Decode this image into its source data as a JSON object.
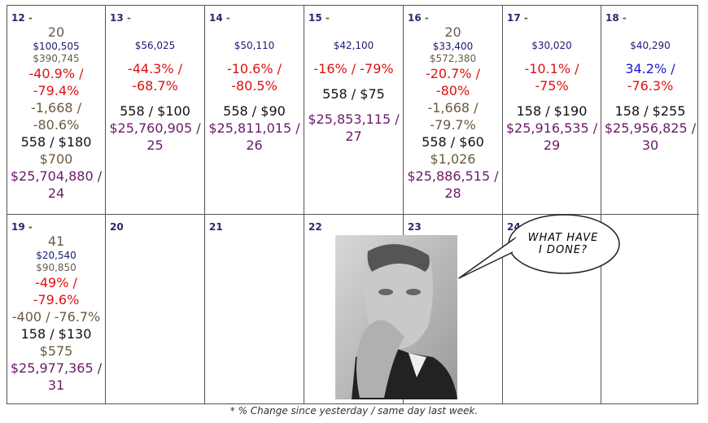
{
  "week1": [
    {
      "day": "12",
      "lines": [
        {
          "t": "20",
          "c": "gray",
          "s": "md"
        },
        {
          "t": "$100,505",
          "c": "blue",
          "s": "sm"
        },
        {
          "t": "$390,745",
          "c": "gray",
          "s": "sm"
        },
        {
          "t": "-40.9% /",
          "c": "red",
          "s": "md"
        },
        {
          "t": "-79.4%",
          "c": "red",
          "s": "md"
        },
        {
          "t": "-1,668 /",
          "c": "olive",
          "s": "md"
        },
        {
          "t": "-80.6%",
          "c": "olive",
          "s": "md"
        },
        {
          "t": "558 / $180",
          "c": "black",
          "s": "md"
        },
        {
          "t": "$700",
          "c": "olive",
          "s": "md"
        },
        {
          "t": "$25,704,880 /",
          "c": "purple",
          "s": "md"
        },
        {
          "t": "24",
          "c": "purple",
          "s": "md"
        }
      ]
    },
    {
      "day": "13",
      "lines": [
        {
          "t": "$56,025",
          "c": "blue",
          "s": "sm"
        },
        {
          "t": "-44.3% /",
          "c": "red",
          "s": "md"
        },
        {
          "t": "-68.7%",
          "c": "red",
          "s": "md"
        },
        {
          "t": "558 / $100",
          "c": "black",
          "s": "md"
        },
        {
          "t": "$25,760,905 /",
          "c": "purple",
          "s": "md"
        },
        {
          "t": "25",
          "c": "purple",
          "s": "md"
        }
      ]
    },
    {
      "day": "14",
      "lines": [
        {
          "t": "$50,110",
          "c": "blue",
          "s": "sm"
        },
        {
          "t": "-10.6% /",
          "c": "red",
          "s": "md"
        },
        {
          "t": "-80.5%",
          "c": "red",
          "s": "md"
        },
        {
          "t": "558 / $90",
          "c": "black",
          "s": "md"
        },
        {
          "t": "$25,811,015 /",
          "c": "purple",
          "s": "md"
        },
        {
          "t": "26",
          "c": "purple",
          "s": "md"
        }
      ]
    },
    {
      "day": "15",
      "lines": [
        {
          "t": "$42,100",
          "c": "blue",
          "s": "sm"
        },
        {
          "t": "-16% / -79%",
          "c": "red",
          "s": "md"
        },
        {
          "t": "558 / $75",
          "c": "black",
          "s": "md"
        },
        {
          "t": "$25,853,115 /",
          "c": "purple",
          "s": "md"
        },
        {
          "t": "27",
          "c": "purple",
          "s": "md"
        }
      ]
    },
    {
      "day": "16",
      "lines": [
        {
          "t": "20",
          "c": "gray",
          "s": "md"
        },
        {
          "t": "$33,400",
          "c": "blue",
          "s": "sm"
        },
        {
          "t": "$572,380",
          "c": "gray",
          "s": "sm"
        },
        {
          "t": "-20.7% /",
          "c": "red",
          "s": "md"
        },
        {
          "t": "-80%",
          "c": "red",
          "s": "md"
        },
        {
          "t": "-1,668 /",
          "c": "olive",
          "s": "md"
        },
        {
          "t": "-79.7%",
          "c": "olive",
          "s": "md"
        },
        {
          "t": "558 / $60",
          "c": "black",
          "s": "md"
        },
        {
          "t": "$1,026",
          "c": "olive",
          "s": "md"
        },
        {
          "t": "$25,886,515 /",
          "c": "purple",
          "s": "md"
        },
        {
          "t": "28",
          "c": "purple",
          "s": "md"
        }
      ]
    },
    {
      "day": "17",
      "lines": [
        {
          "t": "$30,020",
          "c": "blue",
          "s": "sm"
        },
        {
          "t": "-10.1% /",
          "c": "red",
          "s": "md"
        },
        {
          "t": "-75%",
          "c": "red",
          "s": "md"
        },
        {
          "t": "158 / $190",
          "c": "black",
          "s": "md"
        },
        {
          "t": "$25,916,535 /",
          "c": "purple",
          "s": "md"
        },
        {
          "t": "29",
          "c": "purple",
          "s": "md"
        }
      ]
    },
    {
      "day": "18",
      "lines": [
        {
          "t": "$40,290",
          "c": "blue",
          "s": "sm"
        },
        {
          "t": "34.2% /",
          "c": "posblue",
          "s": "md"
        },
        {
          "t": "-76.3%",
          "c": "red",
          "s": "md"
        },
        {
          "t": "158 / $255",
          "c": "black",
          "s": "md"
        },
        {
          "t": "$25,956,825 /",
          "c": "purple",
          "s": "md"
        },
        {
          "t": "30",
          "c": "purple",
          "s": "md"
        }
      ]
    }
  ],
  "week2": [
    {
      "day": "19",
      "lines": [
        {
          "t": "41",
          "c": "olive",
          "s": "md"
        },
        {
          "t": "$20,540",
          "c": "blue",
          "s": "sm"
        },
        {
          "t": "$90,850",
          "c": "gray",
          "s": "sm"
        },
        {
          "t": "-49% /",
          "c": "red",
          "s": "md"
        },
        {
          "t": "-79.6%",
          "c": "red",
          "s": "md"
        },
        {
          "t": "-400 / -76.7%",
          "c": "olive",
          "s": "md"
        },
        {
          "t": "158 / $130",
          "c": "black",
          "s": "md"
        },
        {
          "t": "$575",
          "c": "olive",
          "s": "md"
        },
        {
          "t": "$25,977,365 /",
          "c": "purple",
          "s": "md"
        },
        {
          "t": "31",
          "c": "purple",
          "s": "md"
        }
      ]
    },
    {
      "day": "20",
      "lines": []
    },
    {
      "day": "21",
      "lines": []
    },
    {
      "day": "22",
      "lines": []
    },
    {
      "day": "23",
      "lines": []
    },
    {
      "day": "24",
      "lines": []
    },
    {
      "day": "",
      "lines": []
    }
  ],
  "bubble": {
    "line1": "WHAT HAVE",
    "line2": "I DONE?"
  },
  "footnote": "* % Change since yesterday / same day last week.",
  "colors": {
    "grid": "#555555",
    "red": "#dd1111",
    "blue": "#1a1a7a",
    "purple": "#6a1a6a",
    "olive": "#6a5a40",
    "positive": "#1a1acc"
  }
}
